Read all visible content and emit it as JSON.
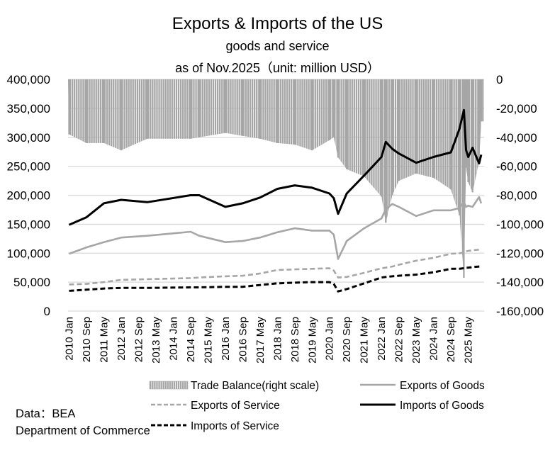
{
  "chart_data": {
    "type": "bar+line",
    "title": "Exports & Imports of the US",
    "subtitle": "goods and service",
    "note": "as of Nov.2025（unit: million USD）",
    "left_axis": {
      "ylim": [
        0,
        400000
      ],
      "ticks": [
        "400,000",
        "350,000",
        "300,000",
        "250,000",
        "200,000",
        "150,000",
        "100,000",
        "50,000",
        "0"
      ]
    },
    "right_axis": {
      "ylim": [
        -160000,
        0
      ],
      "ticks": [
        "0",
        "-20,000",
        "-40,000",
        "-60,000",
        "-80,000",
        "-100,000",
        "-120,000",
        "-140,000",
        "-160,000"
      ]
    },
    "x_range": [
      "2010 Jan",
      "2025 Nov"
    ],
    "x_ticks": [
      "2010 Jan",
      "2010 Sep",
      "2011 May",
      "2012 Jan",
      "2012 Sep",
      "2013 May",
      "2014 Jan",
      "2014 Sep",
      "2015 May",
      "2016 Jan",
      "2016 Sep",
      "2017 May",
      "2018 Jan",
      "2018 Sep",
      "2019 May",
      "2020 Jan",
      "2020 Sep",
      "2021 May",
      "2022 Jan",
      "2022 Sep",
      "2023 May",
      "2024 Jan",
      "2024 Sep",
      "2025 May"
    ],
    "grid": "horizontal",
    "legend_position": "bottom",
    "x": [
      "2010 Jan",
      "2010 Sep",
      "2011 May",
      "2012 Jan",
      "2013 Jan",
      "2014 Sep",
      "2015 Jan",
      "2016 Jan",
      "2016 Sep",
      "2017 May",
      "2018 Jan",
      "2018 Sep",
      "2019 May",
      "2020 Jan",
      "2020 Mar",
      "2020 May",
      "2020 Sep",
      "2021 May",
      "2022 Jan",
      "2022 Mar",
      "2022 Jun",
      "2022 Sep",
      "2023 May",
      "2024 Jan",
      "2024 Sep",
      "2025 Jan",
      "2025 Mar",
      "2025 Apr",
      "2025 May",
      "2025 Jul",
      "2025 Oct",
      "2025 Nov"
    ],
    "series": [
      {
        "name": "Trade Balance(right scale)",
        "axis": "right",
        "kind": "bar",
        "color": "#a6a6a6",
        "values": [
          -38000,
          -44000,
          -44000,
          -49000,
          -41000,
          -41000,
          -40000,
          -37000,
          -39000,
          -41000,
          -44000,
          -45000,
          -49000,
          -42000,
          -40000,
          -54000,
          -62000,
          -67000,
          -81000,
          -99000,
          -80000,
          -70000,
          -65000,
          -68000,
          -76000,
          -94000,
          -137000,
          -61000,
          -71000,
          -78000,
          -57000,
          -29000
        ]
      },
      {
        "name": "Exports of Goods",
        "axis": "left",
        "kind": "line",
        "color": "#a6a6a6",
        "dash": false,
        "values": [
          99000,
          110000,
          119000,
          127000,
          130000,
          137000,
          130000,
          119000,
          121000,
          127000,
          136000,
          143000,
          139000,
          139000,
          132000,
          90000,
          121000,
          143000,
          160000,
          176000,
          185000,
          180000,
          164000,
          174000,
          174000,
          178000,
          188000,
          180000,
          182000,
          180000,
          197000,
          186000
        ]
      },
      {
        "name": "Exports of Service",
        "axis": "left",
        "kind": "line",
        "color": "#a6a6a6",
        "dash": true,
        "values": [
          46000,
          47000,
          50000,
          54000,
          55000,
          57000,
          58000,
          60000,
          61000,
          65000,
          71000,
          72000,
          73000,
          74000,
          70000,
          58000,
          59000,
          66000,
          74000,
          75000,
          77000,
          80000,
          87000,
          92000,
          99000,
          100000,
          101000,
          103000,
          104000,
          105000,
          106000,
          107000
        ]
      },
      {
        "name": "Imports of Goods",
        "axis": "left",
        "kind": "line",
        "color": "#000000",
        "dash": false,
        "values": [
          149000,
          162000,
          186000,
          192000,
          188000,
          200000,
          200000,
          180000,
          186000,
          196000,
          211000,
          217000,
          213000,
          203000,
          195000,
          168000,
          203000,
          234000,
          266000,
          292000,
          280000,
          272000,
          256000,
          266000,
          274000,
          315000,
          347000,
          278000,
          266000,
          282000,
          255000,
          270000
        ]
      },
      {
        "name": "Imports of Service",
        "axis": "left",
        "kind": "line",
        "color": "#000000",
        "dash": true,
        "values": [
          35000,
          37000,
          39000,
          40000,
          40000,
          41000,
          41000,
          42000,
          42000,
          45000,
          48000,
          49000,
          50000,
          50000,
          47000,
          34000,
          38000,
          48000,
          58000,
          59000,
          60000,
          61000,
          63000,
          67000,
          73000,
          73000,
          74000,
          75000,
          75000,
          76000,
          77000,
          77000
        ]
      }
    ]
  },
  "source": {
    "line1": "Data：BEA",
    "line2": "Department of Commerce"
  }
}
